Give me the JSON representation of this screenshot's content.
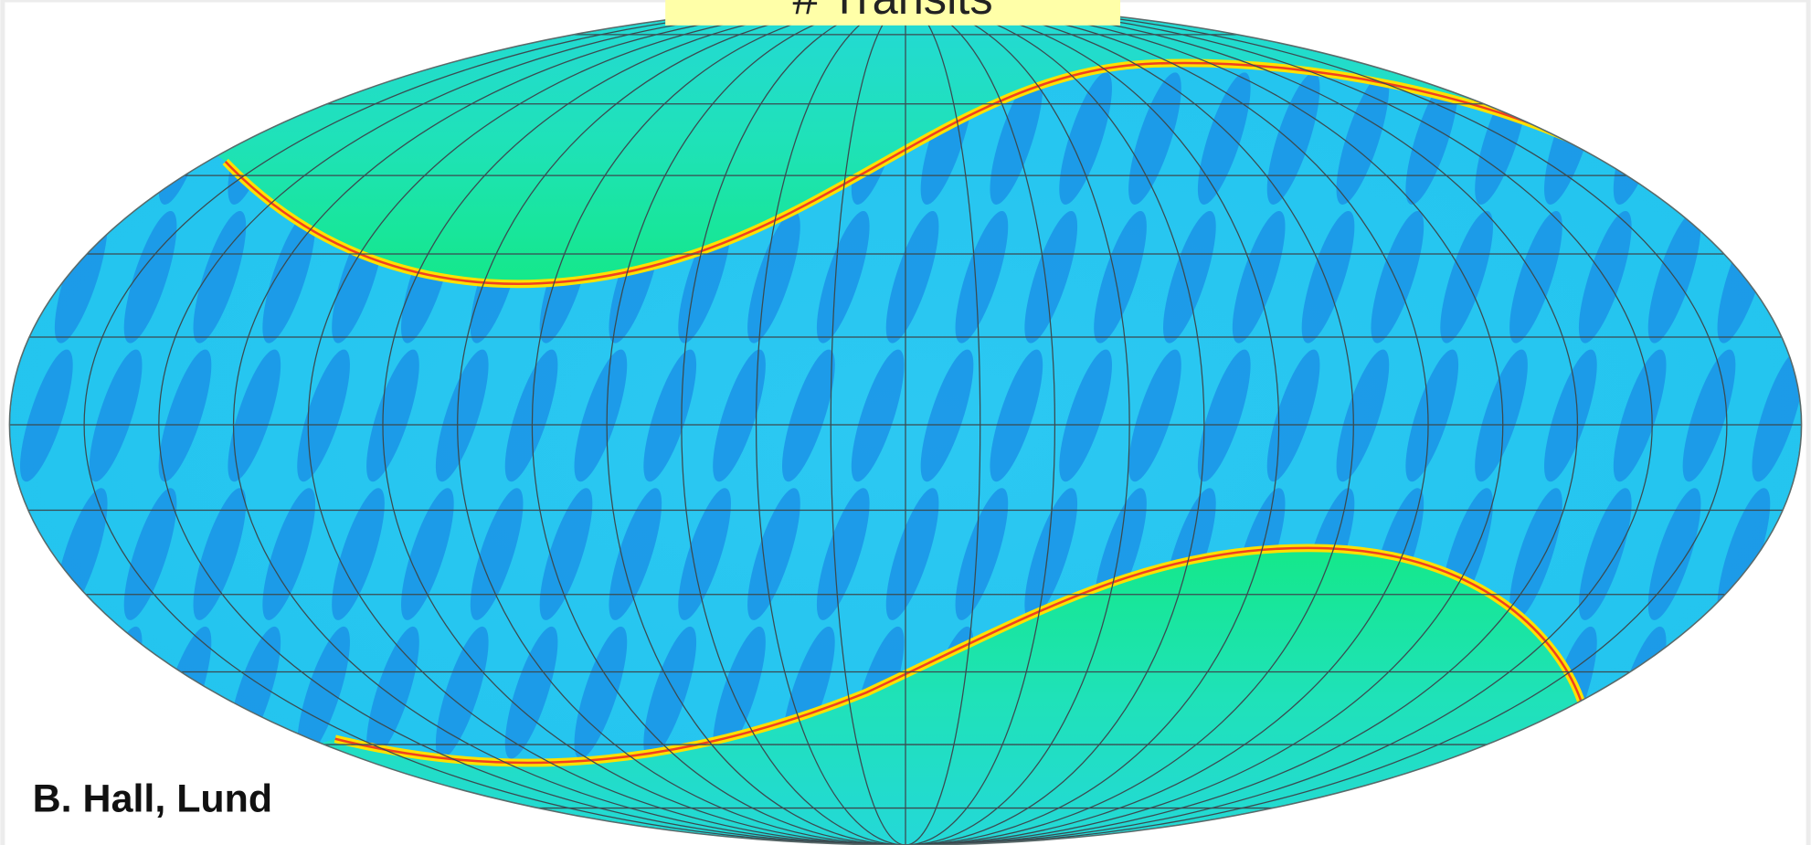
{
  "title_box": {
    "text": "# Transits"
  },
  "credit": "B. Hall, Lund"
}
